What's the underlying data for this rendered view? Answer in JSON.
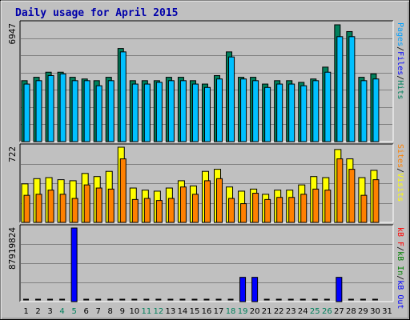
{
  "title": "Daily usage for April 2015",
  "colors": {
    "hits": "#00805c",
    "files": "#00c0ff",
    "pages": "#00a0ff",
    "visits": "#ffff00",
    "sites": "#ff8000",
    "kb_in": "#008000",
    "kb_out": "#0000ff",
    "kb_f": "#ff0000",
    "title_color": "#0000aa",
    "weekend_label": "#00805c",
    "weekday_label": "#000000"
  },
  "right_labels": {
    "top": [
      {
        "text": "Pages",
        "color": "#00a0ff"
      },
      {
        "text": "/",
        "color": "#000000"
      },
      {
        "text": "Files",
        "color": "#0000ff"
      },
      {
        "text": "/",
        "color": "#000000"
      },
      {
        "text": "Hits",
        "color": "#00805c"
      }
    ],
    "middle": [
      {
        "text": "Sites",
        "color": "#ff8000"
      },
      {
        "text": "/",
        "color": "#000000"
      },
      {
        "text": "Visits",
        "color": "#ffff00"
      }
    ],
    "bottom": [
      {
        "text": "kB F",
        "color": "#ff0000"
      },
      {
        "text": "/",
        "color": "#000000"
      },
      {
        "text": "kB In",
        "color": "#008000"
      },
      {
        "text": "/",
        "color": "#000000"
      },
      {
        "text": "kB Out",
        "color": "#0000ff"
      }
    ]
  },
  "chart_data": [
    {
      "type": "bar",
      "panel": "hits_files",
      "ylabel_max": "6947",
      "ylim": [
        0,
        6947
      ],
      "categories": [
        "1",
        "2",
        "3",
        "4",
        "5",
        "6",
        "7",
        "8",
        "9",
        "10",
        "11",
        "12",
        "13",
        "14",
        "15",
        "16",
        "17",
        "18",
        "19",
        "20",
        "21",
        "22",
        "23",
        "24",
        "25",
        "26",
        "27",
        "28",
        "29",
        "30",
        "31"
      ],
      "weekend_days": [
        "4",
        "5",
        "11",
        "12",
        "18",
        "19",
        "25",
        "26"
      ],
      "series": [
        {
          "name": "Hits",
          "values": [
            3600,
            3800,
            4100,
            4100,
            3800,
            3700,
            3600,
            3800,
            5500,
            3600,
            3600,
            3600,
            3800,
            3800,
            3600,
            3400,
            3900,
            5300,
            3800,
            3800,
            3400,
            3600,
            3600,
            3500,
            3700,
            4400,
            6900,
            6500,
            3800,
            4000,
            null
          ]
        },
        {
          "name": "Files",
          "values": [
            3400,
            3600,
            3900,
            4000,
            3600,
            3600,
            3300,
            3600,
            5300,
            3400,
            3400,
            3500,
            3600,
            3600,
            3400,
            3200,
            3700,
            5000,
            3700,
            3600,
            3200,
            3400,
            3400,
            3300,
            3600,
            4100,
            6200,
            6200,
            3600,
            3700,
            null
          ]
        }
      ]
    },
    {
      "type": "bar",
      "panel": "visits_sites",
      "ylabel_max": "722",
      "ylim": [
        0,
        722
      ],
      "categories": [
        "1",
        "2",
        "3",
        "4",
        "5",
        "6",
        "7",
        "8",
        "9",
        "10",
        "11",
        "12",
        "13",
        "14",
        "15",
        "16",
        "17",
        "18",
        "19",
        "20",
        "21",
        "22",
        "23",
        "24",
        "25",
        "26",
        "27",
        "28",
        "29",
        "30",
        "31"
      ],
      "series": [
        {
          "name": "Visits",
          "values": [
            370,
            420,
            430,
            410,
            400,
            470,
            440,
            490,
            722,
            330,
            310,
            300,
            330,
            400,
            350,
            490,
            510,
            340,
            300,
            320,
            270,
            310,
            310,
            360,
            440,
            430,
            700,
            610,
            430,
            500,
            null
          ]
        },
        {
          "name": "Sites",
          "values": [
            260,
            270,
            310,
            270,
            230,
            360,
            330,
            320,
            610,
            220,
            230,
            210,
            230,
            340,
            270,
            400,
            420,
            230,
            180,
            280,
            220,
            240,
            240,
            270,
            320,
            310,
            610,
            510,
            260,
            410,
            null
          ]
        }
      ]
    },
    {
      "type": "bar",
      "panel": "kbytes",
      "ylabel_max": "87919824",
      "ylim": [
        0,
        87919824
      ],
      "categories": [
        "1",
        "2",
        "3",
        "4",
        "5",
        "6",
        "7",
        "8",
        "9",
        "10",
        "11",
        "12",
        "13",
        "14",
        "15",
        "16",
        "17",
        "18",
        "19",
        "20",
        "21",
        "22",
        "23",
        "24",
        "25",
        "26",
        "27",
        "28",
        "29",
        "30",
        "31"
      ],
      "series": [
        {
          "name": "kB Out",
          "values": [
            0,
            0,
            0,
            0,
            87919824,
            0,
            0,
            0,
            0,
            0,
            0,
            0,
            0,
            0,
            0,
            0,
            0,
            0,
            29000000,
            29000000,
            0,
            0,
            0,
            0,
            0,
            0,
            29000000,
            0,
            0,
            0,
            null
          ]
        }
      ]
    }
  ]
}
